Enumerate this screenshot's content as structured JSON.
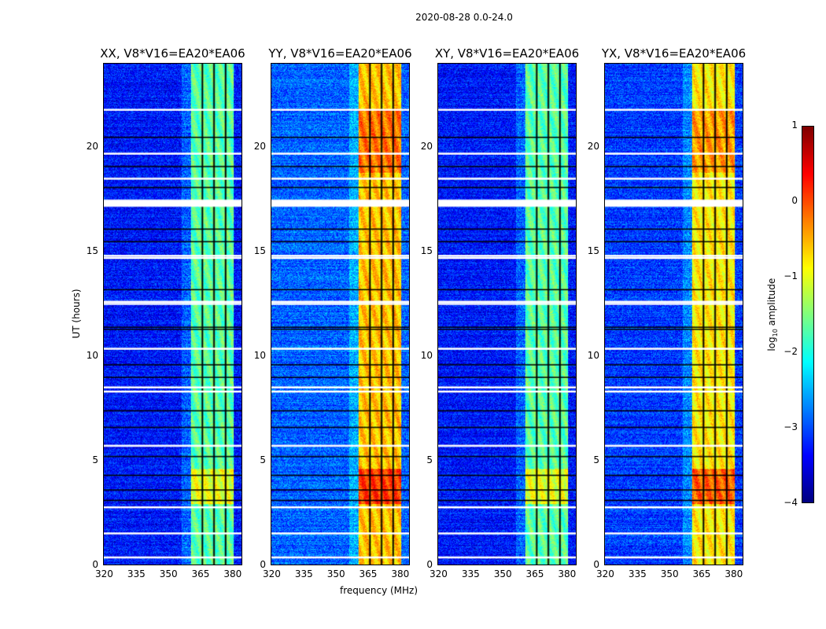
{
  "chart_data": {
    "type": "heatmap",
    "title": "2020-08-28 0.0-24.0",
    "xlabel": "frequency (MHz)",
    "ylabel": "UT (hours)",
    "xlim": [
      320,
      385
    ],
    "ylim": [
      0,
      24
    ],
    "xticks": [
      "320",
      "335",
      "350",
      "365",
      "380"
    ],
    "yticks": [
      "0",
      "5",
      "10",
      "15",
      "20"
    ],
    "panels": [
      {
        "title": "XX, V8*V16=EA20*EA06",
        "band_level": -1.7,
        "bg_level": -3.3
      },
      {
        "title": "YY, V8*V16=EA20*EA06",
        "band_level": -0.6,
        "bg_level": -2.9
      },
      {
        "title": "XY, V8*V16=EA20*EA06",
        "band_level": -1.7,
        "bg_level": -3.3
      },
      {
        "title": "YX, V8*V16=EA20*EA06",
        "band_level": -0.8,
        "bg_level": -3.1
      }
    ],
    "band_mhz": [
      361,
      381
    ],
    "channel_gaps_mhz": [
      366.5,
      372,
      377.5
    ],
    "flagged_hours": [
      0.35,
      1.5,
      2.75,
      5.7,
      8.3,
      8.5,
      10.35,
      12.5,
      12.6,
      14.7,
      14.8,
      17.2,
      17.3,
      17.45,
      18.5,
      19.7,
      21.8
    ],
    "gap_hours": [
      3.1,
      3.6,
      4.3,
      5.2,
      6.6,
      7.4,
      9.0,
      9.6,
      11.3,
      11.4,
      13.2,
      15.5,
      16.1,
      18.1,
      19.1,
      20.5
    ],
    "colorbar": {
      "label": "log10 amplitude",
      "min": -4,
      "max": 1,
      "ticks": [
        "1",
        "0",
        "−1",
        "−2",
        "−3",
        "−4"
      ],
      "colormap": "jet"
    }
  }
}
